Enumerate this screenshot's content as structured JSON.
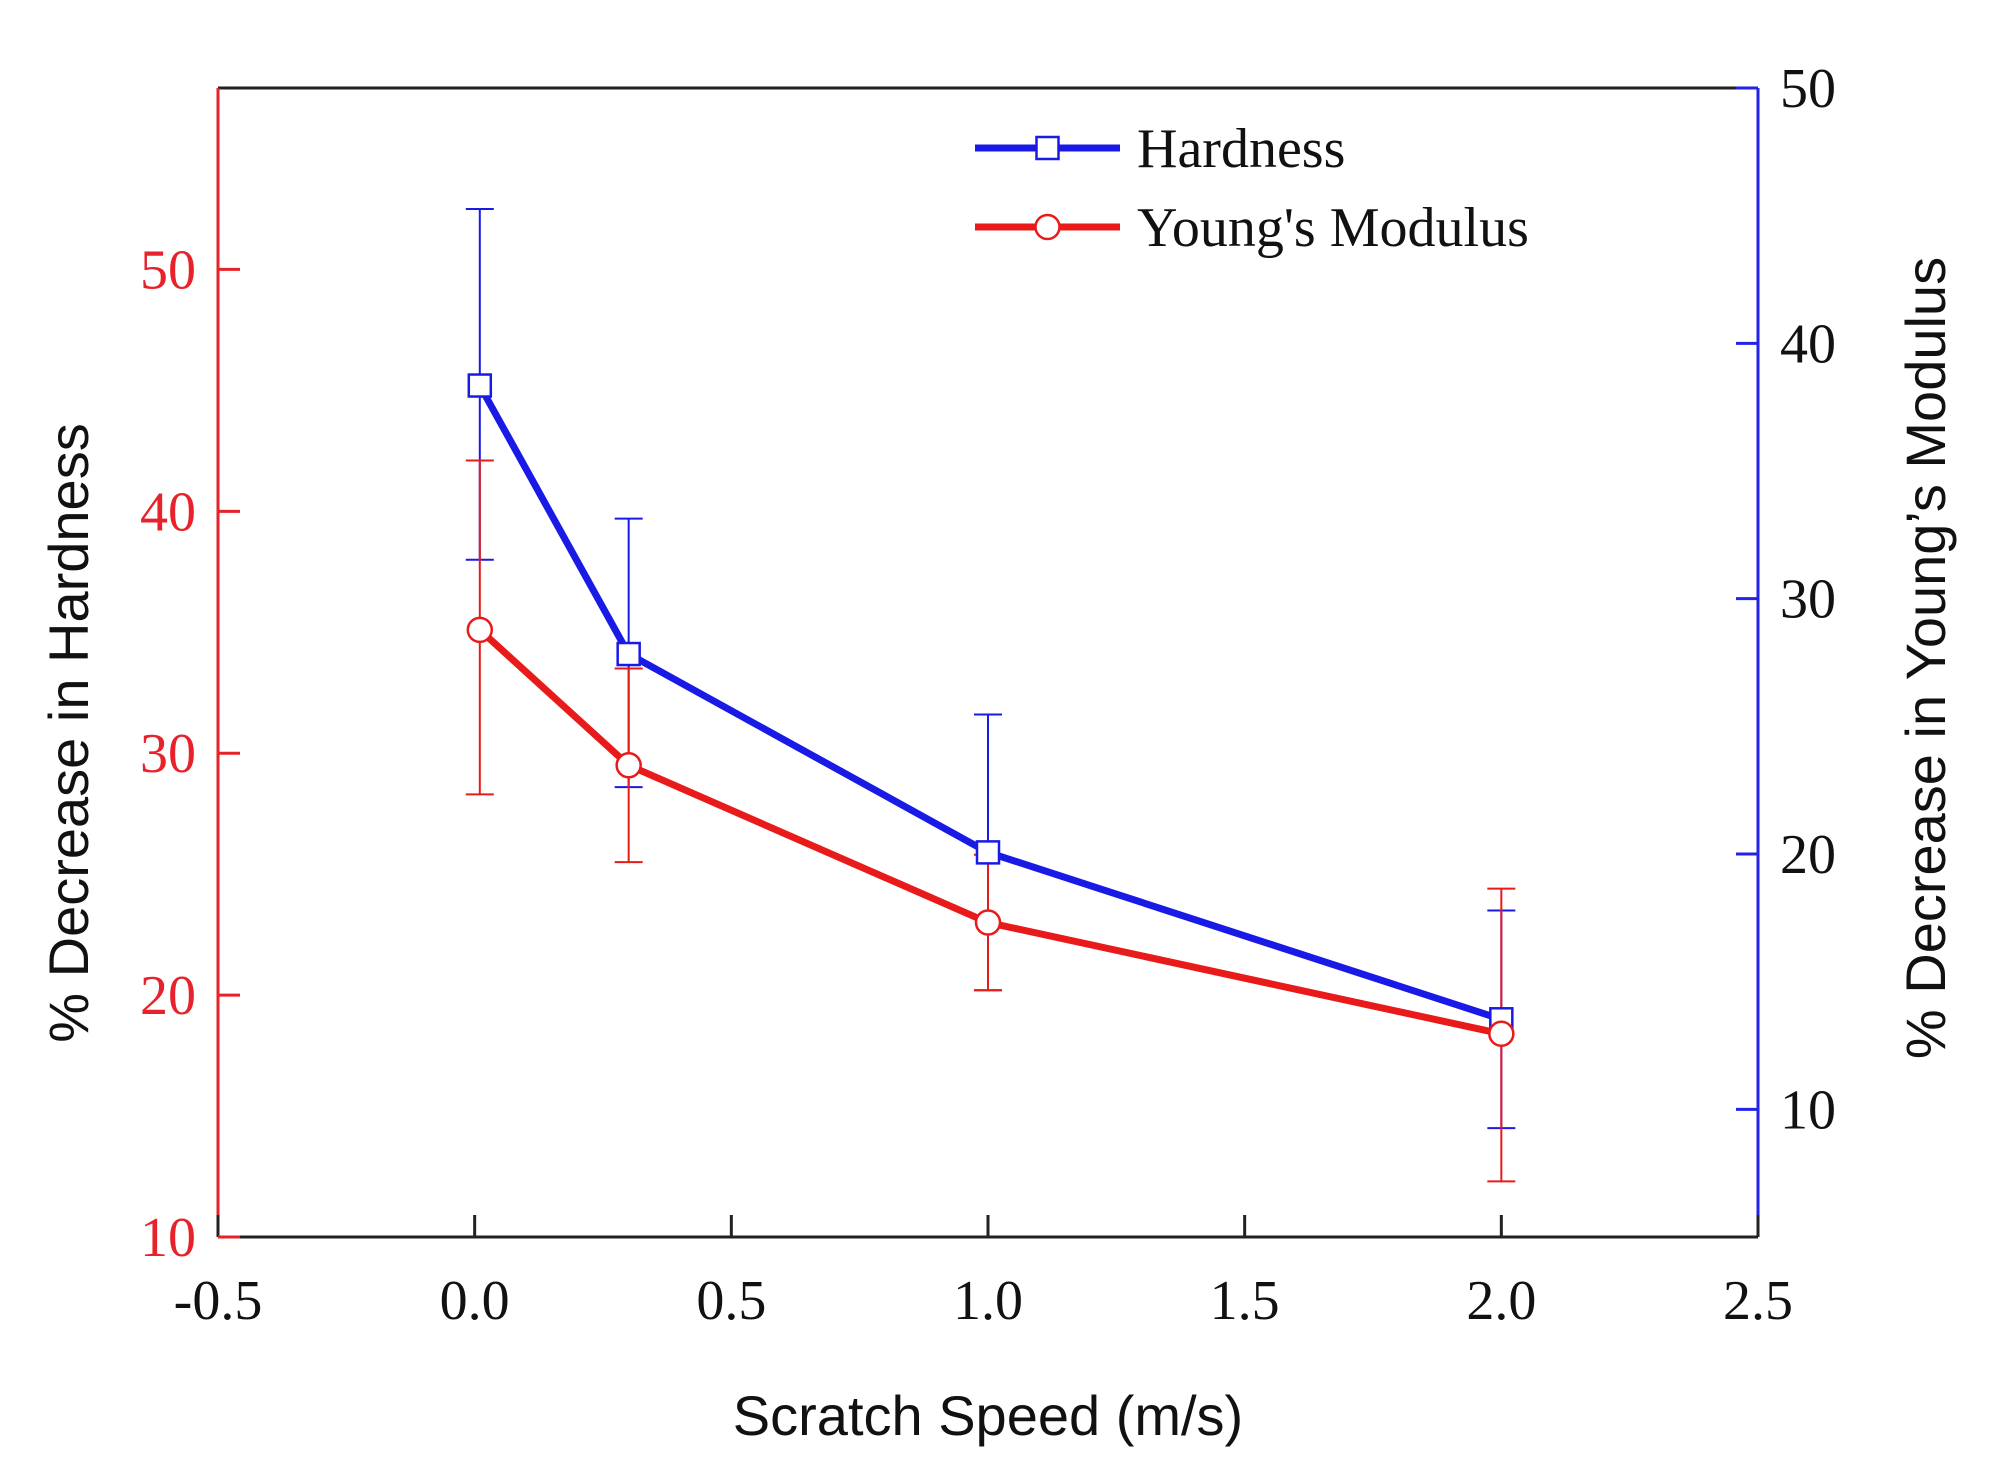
{
  "chart_data": {
    "type": "line",
    "title": "",
    "xlabel": "Scratch Speed (m/s)",
    "ylabel": "% Decrease in Hardness",
    "y2label": "% Decrease in Young’s Modulus",
    "xlim": [
      -0.5,
      2.5
    ],
    "ylim": [
      10,
      57.5
    ],
    "y2lim": [
      5,
      50
    ],
    "x_ticks": [
      -0.5,
      0.0,
      0.5,
      1.0,
      1.5,
      2.0,
      2.5
    ],
    "x_tick_labels": [
      "-0.5",
      "0.0",
      "0.5",
      "1.0",
      "1.5",
      "2.0",
      "2.5"
    ],
    "y_ticks": [
      10,
      20,
      30,
      40,
      50
    ],
    "y_tick_labels": [
      "10",
      "20",
      "30",
      "40",
      "50"
    ],
    "y2_ticks": [
      10,
      20,
      30,
      40,
      50
    ],
    "y2_tick_labels": [
      "10",
      "20",
      "30",
      "40",
      "50"
    ],
    "grid": false,
    "legend_position": "top-right",
    "colors": {
      "left_axis": "#e8222a",
      "right_axis": "#2222e8",
      "frame": "#222222"
    },
    "series": [
      {
        "name": "Hardness",
        "axis": "left",
        "marker": "square",
        "color": "#1a1ae6",
        "x": [
          0.01,
          0.3,
          1.0,
          2.0
        ],
        "values": [
          45.2,
          34.1,
          25.9,
          19.0
        ],
        "err_upper": [
          52.5,
          39.7,
          31.6,
          23.5
        ],
        "err_lower": [
          38.0,
          28.6,
          20.2,
          14.5
        ]
      },
      {
        "name": "Young's Modulus",
        "axis": "left",
        "marker": "circle",
        "color": "#e81a1a",
        "x": [
          0.01,
          0.3,
          1.0,
          2.0
        ],
        "values": [
          35.1,
          29.5,
          23.0,
          18.4
        ],
        "err_upper": [
          42.1,
          33.5,
          25.8,
          24.4
        ],
        "err_lower": [
          28.3,
          25.5,
          20.2,
          12.3
        ]
      }
    ]
  }
}
